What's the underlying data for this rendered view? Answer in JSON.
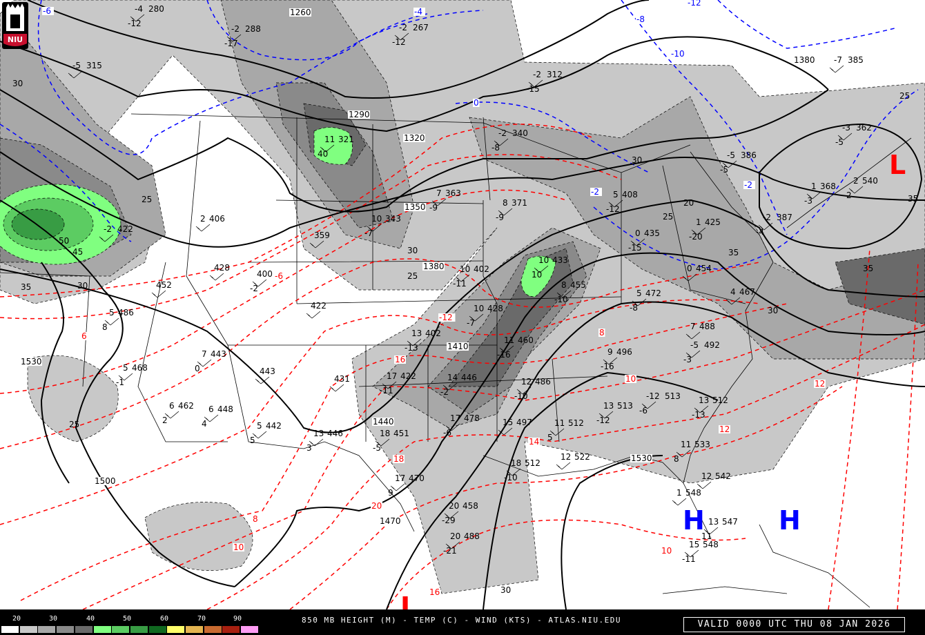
{
  "header": {
    "logo_text": "NIU",
    "title": "850 MB HEIGHT (M) - TEMP (C) - WIND (KTS) - ATLAS.NIU.EDU",
    "valid": "VALID 0000 UTC THU 08 JAN 2026"
  },
  "colorbar": {
    "description_units": "KTS",
    "labels": [
      "20",
      "30",
      "40",
      "50",
      "60",
      "70",
      "90"
    ],
    "colors": [
      "#ffffff",
      "#c8c8c8",
      "#a8a8a8",
      "#8a8a8a",
      "#6a6a6a",
      "#80ff80",
      "#5ccc62",
      "#389c44",
      "#106820",
      "#ffff6a",
      "#e4b450",
      "#c86a30",
      "#a82010",
      "#ff9cf4"
    ]
  },
  "colors": {
    "height_contour": "#000000",
    "temp_above_zero": "#ff0000",
    "temp_below_zero": "#0000ff",
    "high_marker": "#0000ff",
    "low_marker": "#ff0000"
  },
  "pressure_centers": [
    {
      "type": "H",
      "label": "H"
    },
    {
      "type": "H",
      "label": "H"
    },
    {
      "type": "L",
      "label": "L"
    },
    {
      "type": "L",
      "label": "L"
    }
  ],
  "height_labels": [
    "1260",
    "1290",
    "1320",
    "1350",
    "1380",
    "1410",
    "1440",
    "1470",
    "1500",
    "1530",
    "1530",
    "1380"
  ],
  "isotach_labels": [
    "30",
    "25",
    "35",
    "50",
    "45",
    "30",
    "25",
    "30",
    "25",
    "30",
    "35",
    "30",
    "25",
    "25",
    "20",
    "35",
    "30",
    "35"
  ],
  "temp_labels_warm": [
    "-6",
    "6",
    "-12",
    "16",
    "14",
    "18",
    "20",
    "12",
    "10",
    "8",
    "8",
    "10",
    "10",
    "12",
    "16"
  ],
  "temp_labels_cold": [
    "-4",
    "-8",
    "-10",
    "-12",
    "0",
    "-6",
    "-2",
    "-2"
  ],
  "stations": [
    {
      "t": "-4",
      "h": "280",
      "d": "-12"
    },
    {
      "t": "-2",
      "h": "288",
      "d": "-17"
    },
    {
      "t": "-2",
      "h": "267",
      "d": "-12"
    },
    {
      "t": "-5",
      "h": "315",
      "d": ""
    },
    {
      "t": "-2",
      "h": "312",
      "d": "-15"
    },
    {
      "t": "-7",
      "h": "385",
      "d": ""
    },
    {
      "t": "-2",
      "h": "340",
      "d": "-8"
    },
    {
      "t": "11",
      "h": "321",
      "d": "40"
    },
    {
      "t": "-5",
      "h": "386",
      "d": "-5"
    },
    {
      "t": "-3",
      "h": "362",
      "d": "-5"
    },
    {
      "t": "2",
      "h": "540",
      "d": "2"
    },
    {
      "t": "1",
      "h": "368",
      "d": "-3"
    },
    {
      "t": "-2",
      "h": "387",
      "d": "-4"
    },
    {
      "t": "10",
      "h": "343",
      "d": "-7"
    },
    {
      "t": "7",
      "h": "363",
      "d": "-9"
    },
    {
      "t": "8",
      "h": "371",
      "d": "-9"
    },
    {
      "t": "2",
      "h": "406",
      "d": ""
    },
    {
      "t": "5",
      "h": "408",
      "d": "-12"
    },
    {
      "t": "-2",
      "h": "422",
      "d": ""
    },
    {
      "t": "0",
      "h": "435",
      "d": "-15"
    },
    {
      "t": "1",
      "h": "425",
      "d": "-20"
    },
    {
      "t": "",
      "h": "359",
      "d": ""
    },
    {
      "t": "",
      "h": "428",
      "d": ""
    },
    {
      "t": "",
      "h": "400",
      "d": "-2"
    },
    {
      "t": "10",
      "h": "402",
      "d": "-11"
    },
    {
      "t": "10",
      "h": "433",
      "d": "10"
    },
    {
      "t": "8",
      "h": "455",
      "d": "-10"
    },
    {
      "t": "0",
      "h": "454",
      "d": ""
    },
    {
      "t": "",
      "h": "452",
      "d": ""
    },
    {
      "t": "5",
      "h": "472",
      "d": "-8"
    },
    {
      "t": "4",
      "h": "467",
      "d": ""
    },
    {
      "t": "",
      "h": "422",
      "d": ""
    },
    {
      "t": "10",
      "h": "428",
      "d": "-7"
    },
    {
      "t": "5",
      "h": "486",
      "d": "8"
    },
    {
      "t": "13",
      "h": "402",
      "d": "-13"
    },
    {
      "t": "11",
      "h": "460",
      "d": "-16"
    },
    {
      "t": "7",
      "h": "488",
      "d": ""
    },
    {
      "t": "-5",
      "h": "492",
      "d": "-3"
    },
    {
      "t": "7",
      "h": "443",
      "d": "0"
    },
    {
      "t": "5",
      "h": "468",
      "d": "-1"
    },
    {
      "t": "",
      "h": "443",
      "d": ""
    },
    {
      "t": "9",
      "h": "496",
      "d": "-16"
    },
    {
      "t": "17",
      "h": "422",
      "d": "-11"
    },
    {
      "t": "14",
      "h": "446",
      "d": "-2"
    },
    {
      "t": "12",
      "h": "486",
      "d": "-10"
    },
    {
      "t": "",
      "h": "431",
      "d": ""
    },
    {
      "t": "13",
      "h": "513",
      "d": "-12"
    },
    {
      "t": "-12",
      "h": "513",
      "d": "-6"
    },
    {
      "t": "13",
      "h": "512",
      "d": "-13"
    },
    {
      "t": "6",
      "h": "462",
      "d": "2"
    },
    {
      "t": "6",
      "h": "448",
      "d": "4"
    },
    {
      "t": "17",
      "h": "478",
      "d": "-6"
    },
    {
      "t": "15",
      "h": "497",
      "d": ""
    },
    {
      "t": "11",
      "h": "512",
      "d": "5"
    },
    {
      "t": "5",
      "h": "442",
      "d": "5"
    },
    {
      "t": "13",
      "h": "446",
      "d": "3"
    },
    {
      "t": "18",
      "h": "451",
      "d": "-5"
    },
    {
      "t": "11",
      "h": "533",
      "d": "8"
    },
    {
      "t": "18",
      "h": "512",
      "d": "-10"
    },
    {
      "t": "12",
      "h": "522",
      "d": ""
    },
    {
      "t": "12",
      "h": "542",
      "d": ""
    },
    {
      "t": "17",
      "h": "470",
      "d": "9"
    },
    {
      "t": "1",
      "h": "548",
      "d": ""
    },
    {
      "t": "13",
      "h": "547",
      "d": "11"
    },
    {
      "t": "20",
      "h": "458",
      "d": "-29"
    },
    {
      "t": "20",
      "h": "488",
      "d": "-21"
    },
    {
      "t": "15",
      "h": "548",
      "d": "-11"
    }
  ]
}
